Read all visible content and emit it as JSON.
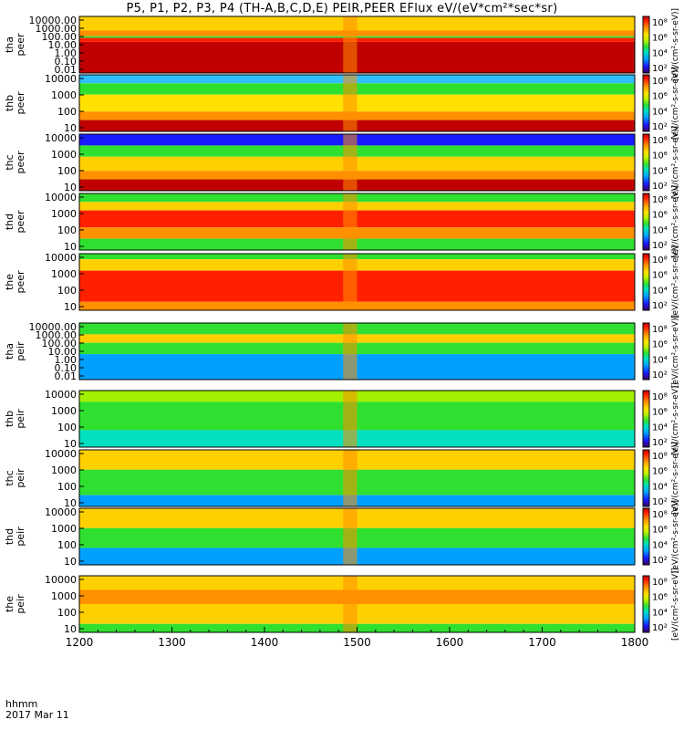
{
  "title": "P5, P1, P2, P3, P4 (TH-A,B,C,D,E) PEIR,PEER EFlux eV/(eV*cm²*sec*sr)",
  "footer": {
    "line1": "hhmm",
    "line2": "2017 Mar 11"
  },
  "colorbar_label": "[eV/(cm²-s-sr-eV)]",
  "colors": {
    "background": "#ffffff",
    "frame": "#000000",
    "cmap": [
      "#3a0060",
      "#1a1aff",
      "#00a0ff",
      "#00e0c0",
      "#30e030",
      "#c0f000",
      "#ffe000",
      "#ff9000",
      "#ff2000",
      "#c00000"
    ]
  },
  "chart_data": [
    {
      "type": "heatmap",
      "spacecraft": "tha",
      "species": "peer",
      "ylabel": "tha\npeer",
      "ytick_labels": [
        "10000.00",
        "1000.00",
        "100.00",
        "10.00",
        "1.00",
        "0.10",
        "0.01"
      ],
      "colorbar_ticks": [
        "10⁸",
        "10⁶",
        "10⁴",
        "10²"
      ],
      "xlim": [
        1200,
        1800
      ]
    },
    {
      "type": "heatmap",
      "spacecraft": "thb",
      "species": "peer",
      "ylabel": "thb\npeer",
      "ytick_labels": [
        "10000",
        "1000",
        "100",
        "10"
      ],
      "colorbar_ticks": [
        "10⁸",
        "10⁶",
        "10⁴",
        "10²"
      ],
      "xlim": [
        1200,
        1800
      ]
    },
    {
      "type": "heatmap",
      "spacecraft": "thc",
      "species": "peer",
      "ylabel": "thc\npeer",
      "ytick_labels": [
        "10000",
        "1000",
        "100",
        "10"
      ],
      "colorbar_ticks": [
        "10⁸",
        "10⁶",
        "10⁴",
        "10²"
      ],
      "xlim": [
        1200,
        1800
      ]
    },
    {
      "type": "heatmap",
      "spacecraft": "thd",
      "species": "peer",
      "ylabel": "thd\npeer",
      "ytick_labels": [
        "10000",
        "1000",
        "100",
        "10"
      ],
      "colorbar_ticks": [
        "10⁸",
        "10⁶",
        "10⁴",
        "10²"
      ],
      "xlim": [
        1200,
        1800
      ]
    },
    {
      "type": "heatmap",
      "spacecraft": "the",
      "species": "peer",
      "ylabel": "the\npeer",
      "ytick_labels": [
        "10000",
        "1000",
        "100",
        "10"
      ],
      "colorbar_ticks": [
        "10⁸",
        "10⁶",
        "10⁴",
        "10²"
      ],
      "xlim": [
        1200,
        1800
      ]
    },
    {
      "type": "heatmap",
      "spacecraft": "tha",
      "species": "peir",
      "ylabel": "tha\npeir",
      "ytick_labels": [
        "10000.00",
        "1000.00",
        "100.00",
        "10.00",
        "1.00",
        "0.10",
        "0.01"
      ],
      "colorbar_ticks": [
        "10⁸",
        "10⁶",
        "10⁴",
        "10²"
      ],
      "xlim": [
        1200,
        1800
      ]
    },
    {
      "type": "heatmap",
      "spacecraft": "thb",
      "species": "peir",
      "ylabel": "thb\npeir",
      "ytick_labels": [
        "10000",
        "1000",
        "100",
        "10"
      ],
      "colorbar_ticks": [
        "10⁸",
        "10⁶",
        "10⁴",
        "10²"
      ],
      "xlim": [
        1200,
        1800
      ]
    },
    {
      "type": "heatmap",
      "spacecraft": "thc",
      "species": "peir",
      "ylabel": "thc\npeir",
      "ytick_labels": [
        "10000",
        "1000",
        "100",
        "10"
      ],
      "colorbar_ticks": [
        "10⁸",
        "10⁶",
        "10⁴",
        "10²"
      ],
      "xlim": [
        1200,
        1800
      ]
    },
    {
      "type": "heatmap",
      "spacecraft": "thd",
      "species": "peir",
      "ylabel": "thd\npeir",
      "ytick_labels": [
        "10000",
        "1000",
        "100",
        "10"
      ],
      "colorbar_ticks": [
        "10⁸",
        "10⁶",
        "10⁴",
        "10²"
      ],
      "xlim": [
        1200,
        1800
      ]
    },
    {
      "type": "heatmap",
      "spacecraft": "the",
      "species": "peir",
      "ylabel": "the\npeir",
      "ytick_labels": [
        "10000",
        "1000",
        "100",
        "10"
      ],
      "colorbar_ticks": [
        "10⁸",
        "10⁶",
        "10⁴",
        "10²"
      ],
      "xlim": [
        1200,
        1800
      ]
    }
  ],
  "xaxis": {
    "ticks": [
      1200,
      1300,
      1400,
      1500,
      1600,
      1700,
      1800
    ],
    "minor_step": 20
  }
}
